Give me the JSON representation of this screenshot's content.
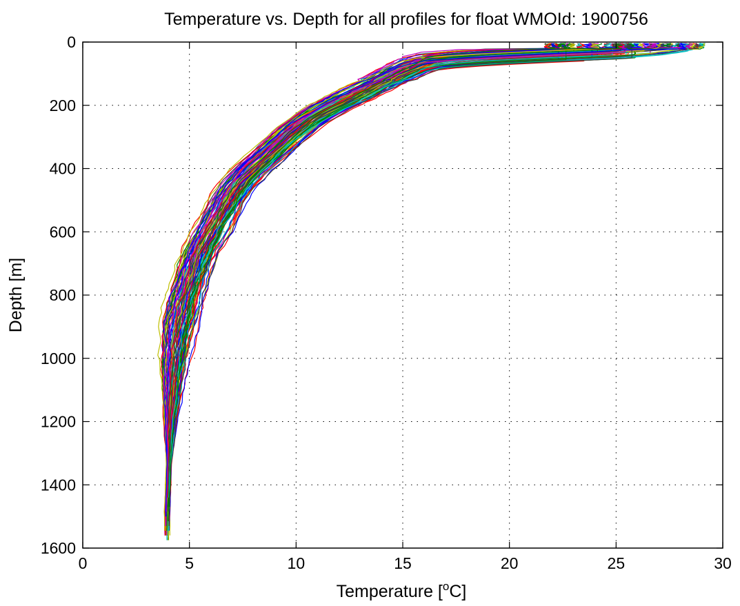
{
  "chart_data": {
    "type": "line",
    "title": "Temperature vs. Depth for all profiles for float WMOId: 1900756",
    "xlabel": "Temperature [",
    "xlabel_superscript": "o",
    "xlabel_suffix": "C]",
    "ylabel": "Depth [m]",
    "xlim": [
      0,
      30
    ],
    "ylim": [
      0,
      1600
    ],
    "y_reversed": true,
    "grid": true,
    "legend": "none",
    "xticks": [
      0,
      5,
      10,
      15,
      20,
      25,
      30
    ],
    "yticks": [
      0,
      200,
      400,
      600,
      800,
      1000,
      1200,
      1400,
      1600
    ],
    "xtick_labels": [
      "0",
      "5",
      "10",
      "15",
      "20",
      "25",
      "30"
    ],
    "ytick_labels": [
      "0",
      "200",
      "400",
      "600",
      "800",
      "1000",
      "1200",
      "1400",
      "1600"
    ],
    "profile_colors": [
      "#0000ff",
      "#008000",
      "#ff0000",
      "#00bfbf",
      "#bf00bf",
      "#bfbf00",
      "#404040"
    ],
    "profile_count": 100,
    "max_depth_range": [
      1440,
      1580
    ],
    "representative_profile": {
      "depth": [
        5,
        10,
        20,
        30,
        40,
        50,
        60,
        70,
        80,
        100,
        120,
        140,
        160,
        180,
        200,
        225,
        250,
        300,
        350,
        400,
        450,
        500,
        550,
        600,
        650,
        700,
        800,
        900,
        1000,
        1100,
        1200,
        1300,
        1400,
        1500
      ],
      "temperature": [
        28.5,
        28.0,
        27.0,
        25.0,
        21.5,
        18.5,
        16.5,
        15.8,
        15.4,
        14.8,
        14.2,
        13.6,
        13.0,
        12.4,
        11.8,
        11.1,
        10.5,
        9.6,
        8.8,
        8.0,
        7.3,
        6.8,
        6.4,
        6.0,
        5.6,
        5.3,
        4.85,
        4.5,
        4.3,
        4.2,
        4.1,
        4.05,
        4.0,
        3.95
      ]
    }
  }
}
